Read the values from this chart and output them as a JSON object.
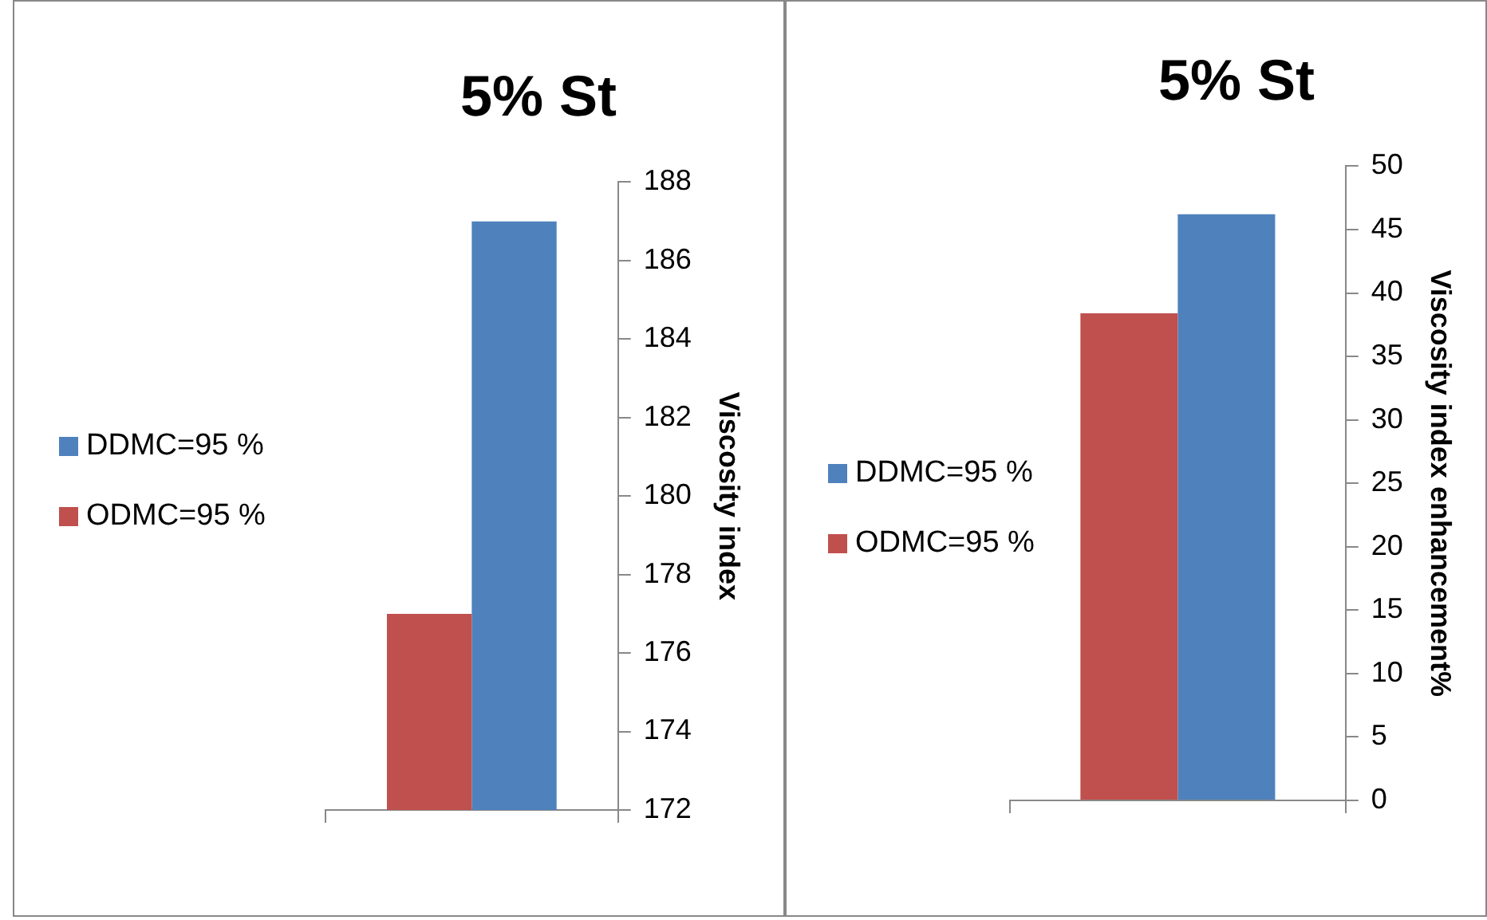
{
  "chart_data": [
    {
      "type": "bar",
      "title": "5% St",
      "ylabel": "Viscosity index",
      "categories": [
        null
      ],
      "series": [
        {
          "name": "ODMC=95 %",
          "color": "#c0504d",
          "values": [
            177
          ]
        },
        {
          "name": "DDMC=95 %",
          "color": "#4f81bd",
          "values": [
            187
          ]
        }
      ],
      "ylim": [
        172,
        188
      ],
      "yticks": [
        172,
        174,
        176,
        178,
        180,
        182,
        184,
        186,
        188
      ],
      "grid": false,
      "legend": "left",
      "tick_labels": "y"
    },
    {
      "type": "bar",
      "title": "5% St",
      "ylabel": "Viscosity index enhancement%",
      "categories": [
        null
      ],
      "series": [
        {
          "name": "ODMC=95 %",
          "color": "#c0504d",
          "values": [
            38.4
          ]
        },
        {
          "name": "DDMC=95 %",
          "color": "#4f81bd",
          "values": [
            46.2
          ]
        }
      ],
      "ylim": [
        0,
        50
      ],
      "yticks": [
        0,
        5,
        10,
        15,
        20,
        25,
        30,
        35,
        40,
        45,
        50
      ],
      "grid": false,
      "legend": "left",
      "tick_labels": "y"
    }
  ]
}
